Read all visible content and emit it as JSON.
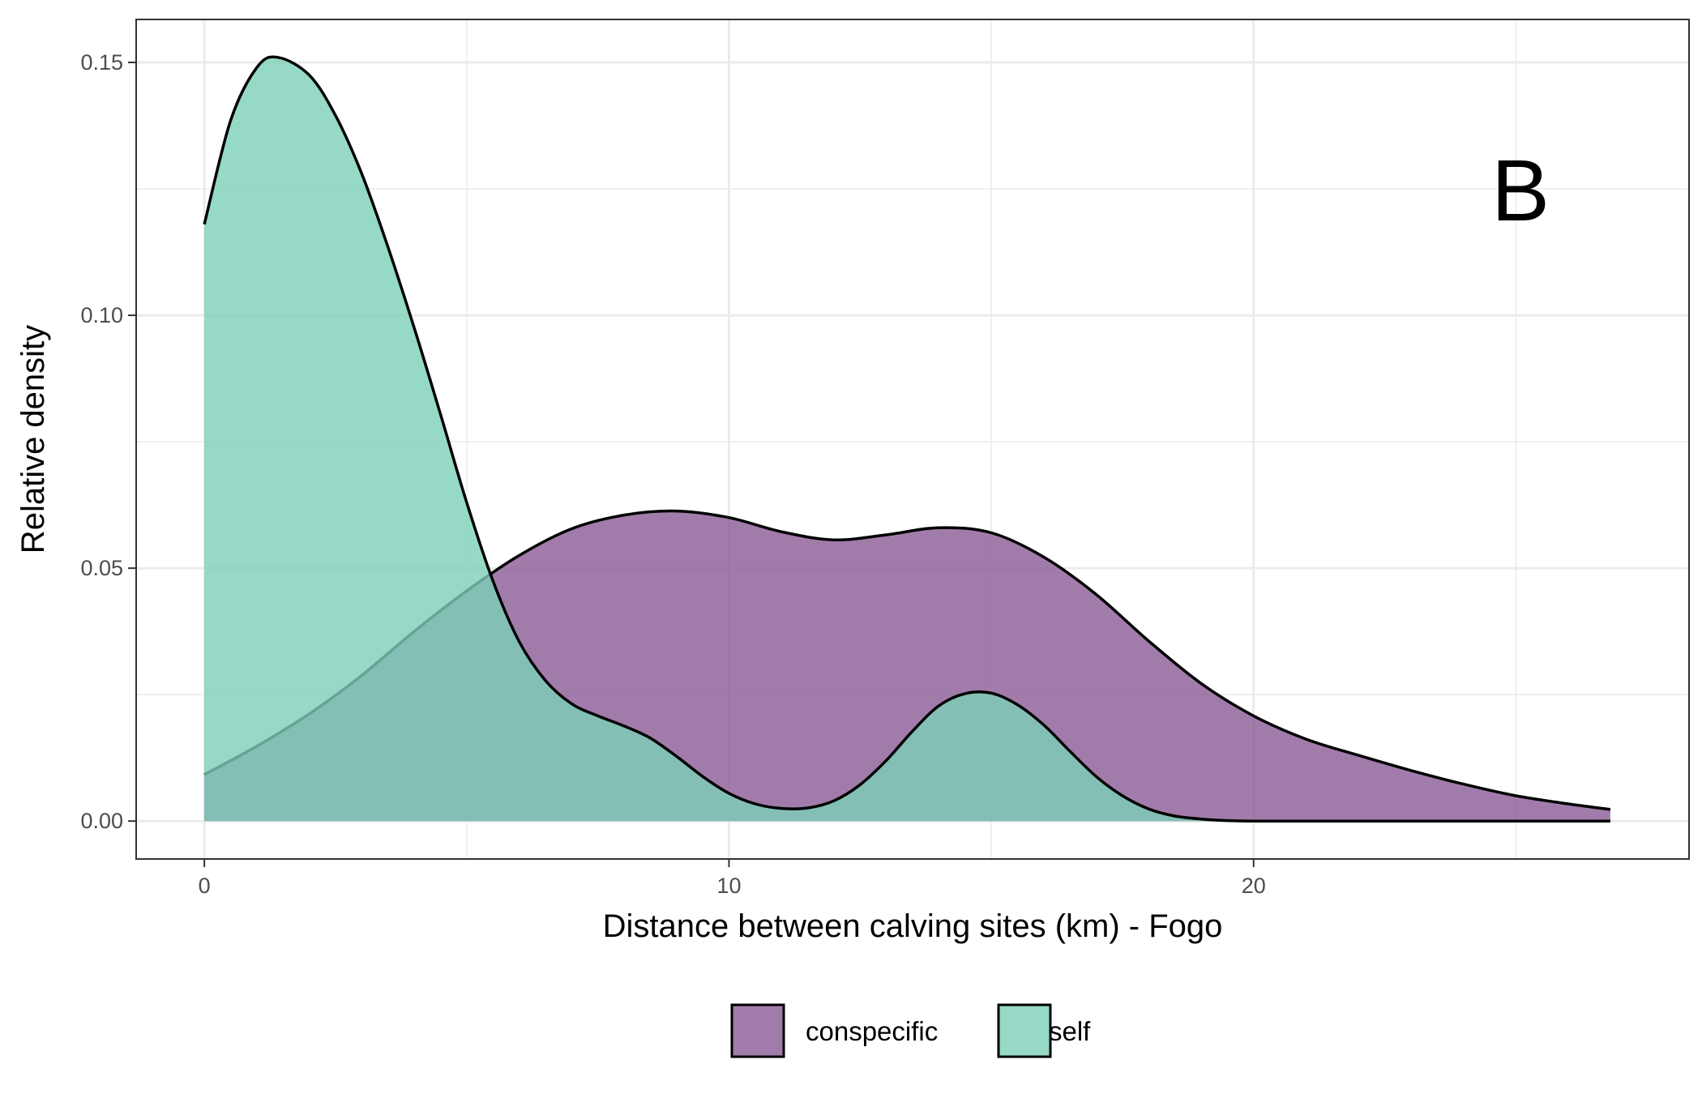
{
  "chart_data": {
    "type": "area",
    "panel_label": "B",
    "xlabel": "Distance between calving sites (km) - Fogo",
    "ylabel": "Relative density",
    "xlim": [
      -1.3,
      28.3
    ],
    "ylim": [
      -0.0075,
      0.1585
    ],
    "x_ticks": [
      0,
      10,
      20
    ],
    "x_tick_labels": [
      "0",
      "10",
      "20"
    ],
    "x_minor_gridlines": [
      5,
      15,
      25
    ],
    "y_ticks": [
      0.0,
      0.05,
      0.1,
      0.15
    ],
    "y_tick_labels": [
      "0.00",
      "0.05",
      "0.10",
      "0.15"
    ],
    "y_minor_gridlines": [
      0.025,
      0.075,
      0.125
    ],
    "grid": true,
    "legend_position": "bottom",
    "series": [
      {
        "name": "conspecific",
        "color": "#8a5b95",
        "x": [
          0,
          1,
          2,
          3,
          4,
          5,
          6,
          7,
          8,
          9,
          10,
          11,
          12,
          13,
          14,
          15,
          16,
          17,
          18,
          19,
          20,
          21,
          22,
          23,
          24,
          25,
          26,
          26.8
        ],
        "values": [
          0.0092,
          0.0148,
          0.0212,
          0.0288,
          0.0375,
          0.0455,
          0.0525,
          0.0578,
          0.0605,
          0.0613,
          0.06,
          0.0572,
          0.0556,
          0.0566,
          0.058,
          0.057,
          0.0522,
          0.0448,
          0.0356,
          0.0272,
          0.0208,
          0.0162,
          0.013,
          0.01,
          0.0073,
          0.005,
          0.0034,
          0.0023
        ]
      },
      {
        "name": "self",
        "color": "#7ccfb8",
        "x": [
          0,
          0.5,
          1,
          1.4,
          2,
          2.5,
          3,
          3.5,
          4,
          4.5,
          5,
          5.5,
          6,
          6.5,
          7,
          7.5,
          8,
          8.5,
          9,
          9.5,
          10,
          10.5,
          11,
          11.5,
          12,
          12.5,
          13,
          13.5,
          14,
          14.5,
          15,
          15.5,
          16,
          16.5,
          17,
          17.5,
          18,
          18.5,
          19,
          19.5,
          20,
          21,
          22,
          23,
          24,
          25,
          26,
          26.8
        ],
        "values": [
          0.118,
          0.1385,
          0.149,
          0.151,
          0.1475,
          0.1395,
          0.128,
          0.1135,
          0.0975,
          0.0805,
          0.063,
          0.0475,
          0.0355,
          0.0278,
          0.0232,
          0.0208,
          0.0188,
          0.0164,
          0.0128,
          0.0088,
          0.0055,
          0.0034,
          0.0025,
          0.0026,
          0.004,
          0.0072,
          0.012,
          0.0178,
          0.0228,
          0.0252,
          0.0253,
          0.023,
          0.019,
          0.0138,
          0.0088,
          0.005,
          0.0024,
          0.001,
          0.0004,
          0.0001,
          0.0,
          0.0,
          0.0,
          0.0,
          0.0,
          0.0,
          0.0,
          0.0
        ]
      }
    ]
  },
  "legend": {
    "items": [
      {
        "label": "conspecific",
        "color": "#8a5b95"
      },
      {
        "label": "self",
        "color": "#7ccfb8"
      }
    ]
  }
}
